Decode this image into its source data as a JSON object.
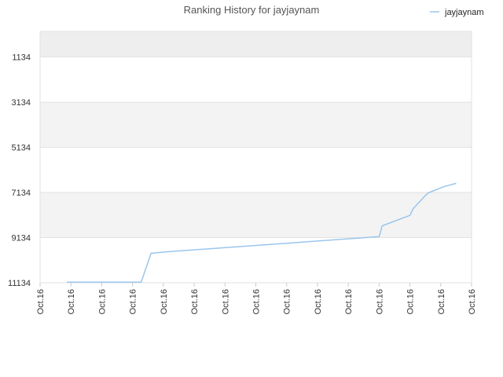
{
  "colors": {
    "line": "#9ac6ec",
    "band_dark": "#eeeeee",
    "band_light": "#f3f3f3",
    "grid": "#e2e2e2"
  },
  "chart_data": {
    "type": "line",
    "title": "Ranking History for jayjaynam",
    "xlabel": "",
    "ylabel": "",
    "legend": {
      "position": "top-right",
      "entries": [
        "jayjaynam"
      ]
    },
    "y_inverted": true,
    "ylim": [
      11134,
      0
    ],
    "yticks": [
      1134,
      3134,
      5134,
      7134,
      9134,
      11134
    ],
    "ytick_labels": [
      "1134",
      "3134",
      "5134",
      "7134",
      "9134",
      "11134"
    ],
    "xtick_labels": [
      "Oct.16",
      "Oct.16",
      "Oct.16",
      "Oct.16",
      "Oct.16",
      "Oct.16",
      "Oct.16",
      "Oct.16",
      "Oct.16",
      "Oct.16",
      "Oct.16",
      "Oct.16",
      "Oct.16",
      "Oct.16",
      "Oct.16"
    ],
    "xlim": [
      0,
      14
    ],
    "series": [
      {
        "name": "jayjaynam",
        "x": [
          0.87,
          3.28,
          3.6,
          4.15,
          11.0,
          11.1,
          12.0,
          12.1,
          12.5,
          12.6,
          13.1,
          13.5
        ],
        "y": [
          11110,
          11110,
          9830,
          9760,
          9090,
          8610,
          8150,
          7860,
          7270,
          7150,
          6880,
          6730
        ]
      }
    ]
  }
}
